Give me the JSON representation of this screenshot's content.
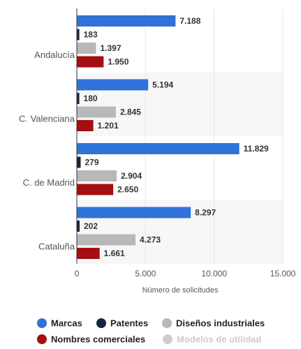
{
  "chart_data": {
    "type": "hbar",
    "categories": [
      "Andalucía",
      "C. Valenciana",
      "C. de Madrid",
      "Cataluña"
    ],
    "series": [
      {
        "name": "Marcas",
        "color": "#2f72d8",
        "values": [
          7188,
          5194,
          11829,
          8297
        ],
        "value_labels": [
          "7.188",
          "5.194",
          "11.829",
          "8.297"
        ]
      },
      {
        "name": "Patentes",
        "color": "#14263d",
        "values": [
          183,
          180,
          279,
          202
        ],
        "value_labels": [
          "183",
          "180",
          "279",
          "202"
        ]
      },
      {
        "name": "Diseños industriales",
        "color": "#b8b8b8",
        "values": [
          1397,
          2845,
          2904,
          4273
        ],
        "value_labels": [
          "1.397",
          "2.845",
          "2.904",
          "4.273"
        ]
      },
      {
        "name": "Nombres comerciales",
        "color": "#a50f12",
        "values": [
          1950,
          1201,
          2650,
          1661
        ],
        "value_labels": [
          "1.950",
          "1.201",
          "2.650",
          "1.661"
        ]
      },
      {
        "name": "Modelos de utilidad",
        "color": "#cccccc",
        "visible": false,
        "values": [
          null,
          null,
          null,
          null
        ]
      }
    ],
    "xlabel": "Número de solicitudes",
    "xlim": [
      0,
      15000
    ],
    "xticks": [
      0,
      {
        "value": 5000,
        "label": "5.000"
      },
      {
        "value": 10000,
        "label": "10.000"
      },
      {
        "value": 15000,
        "label": "15.000"
      }
    ],
    "grid": true
  }
}
